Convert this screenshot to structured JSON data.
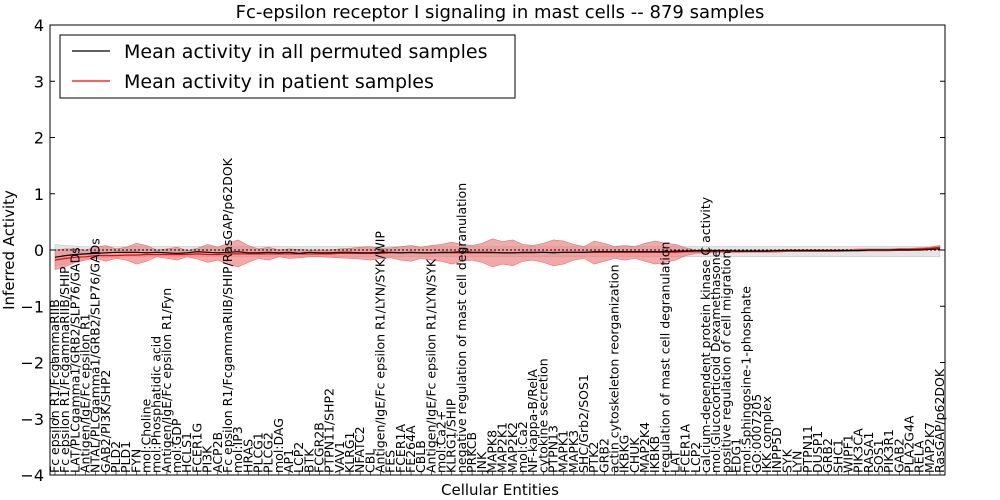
{
  "chart_data": {
    "type": "line",
    "title": "Fc-epsilon receptor I signaling in mast cells -- 879 samples",
    "xlabel": "Cellular Entities",
    "ylabel": "Inferred Activity",
    "ylim": [
      -4,
      4
    ],
    "yticks": [
      -4,
      -3,
      -2,
      -1,
      0,
      1,
      2,
      3,
      4
    ],
    "yticklabels": [
      "−4",
      "−3",
      "−2",
      "−1",
      "0",
      "1",
      "2",
      "3",
      "4"
    ],
    "grid": false,
    "legend_position": "top-left",
    "categories": [
      "Fc epsilon R1/FcgammaRIIB",
      "Fc epsilon R1/FcgammaRIIB/SHIP",
      "LAT/PLCgamma1/GRB2/SLP76/GADs",
      "Antigen/IgE/Fc epsilon R1",
      "NTAL/PLCgamma1/GRB2/SLP76/GADs",
      "GAB2/PI3K/SHP2",
      "PLD2",
      "PLD1",
      "FYN",
      "mol:Choline",
      "mol:Phosphatidic acid",
      "Antigen/IgE/Fc epsilon R1/Fyn",
      "mol:GDP",
      "HCLS1",
      "FCER1G",
      "PI3K",
      "ACP2B",
      "Fc epsilon R1/FcgammaRIIB/SHIP/RasGAP/p62DOK",
      "mol:IP3",
      "HRAS",
      "PLCG1",
      "PLCG2",
      "mol:DAG",
      "AP1",
      "LCP2",
      "BTK",
      "FCGR2B",
      "PTPN11/SHP2",
      "VAV1",
      "KLRG1",
      "NFATC2",
      "CBL",
      "Antigen/IgE/Fc epsilon R1/LYN/SYK/WIP",
      "FES",
      "FCER1A",
      "FE264A",
      "CBLB",
      "Antigen/IgE/Fc epsilon R1/LYN/SYK",
      "mol:Ca2+",
      "KLRG1/SHIP",
      "negative regulation of mast cell degranulation",
      "PRKCB",
      "JNK",
      "MAPK8",
      "MAP2K1",
      "MAP2K2",
      "mol:Ca2",
      "NF-kappa-B/RelA",
      "cytokine secretion",
      "PTPN13",
      "MAPK1",
      "MAPK3",
      "SHC/Grb2/SOS1",
      "PTK2",
      "GRB2",
      "actin cytoskeleton reorganization",
      "IKBKG",
      "CHUK",
      "MAP2K4",
      "IKBKB",
      "regulation of mast cell degranulation",
      "LAT",
      "FCER1A",
      "LCP2",
      "calcium-dependent protein kinase C activity",
      "mol:Glucocorticoid Dexamethasone",
      "positive regulation of cell migration",
      "EDG1",
      "mol:Sphingosine-1-phosphate",
      "GO:0007205",
      "IKK complex",
      "INPP5D",
      "SYK",
      "LYN",
      "PTPN11",
      "DUSP1",
      "GRB2",
      "SHC1",
      "WIPF1",
      "PIK3CA",
      "RASA1",
      "SOS1",
      "PIK3R1",
      "GAB2",
      "PLA2G4A",
      "RELA",
      "MAP2K7",
      "RasGAP/p62DOK"
    ],
    "series": [
      {
        "name": "Mean activity in all permuted samples",
        "color": "#000000",
        "values": [
          -0.13,
          -0.1,
          -0.08,
          -0.07,
          -0.06,
          -0.05,
          -0.04,
          -0.04,
          -0.04,
          -0.05,
          -0.04,
          -0.05,
          -0.06,
          -0.05,
          -0.03,
          -0.04,
          -0.05,
          -0.04,
          -0.03,
          -0.05,
          -0.05,
          -0.04,
          -0.05,
          -0.04,
          -0.06,
          -0.04,
          -0.05,
          -0.05,
          -0.04,
          -0.04,
          -0.05,
          -0.05,
          -0.04,
          -0.04,
          -0.05,
          -0.04,
          -0.05,
          -0.05,
          -0.04,
          -0.04,
          -0.03,
          -0.04,
          -0.04,
          -0.04,
          -0.05,
          -0.05,
          -0.04,
          -0.04,
          -0.04,
          -0.05,
          -0.04,
          -0.04,
          -0.04,
          -0.03,
          -0.03,
          -0.03,
          -0.03,
          -0.03,
          -0.03,
          -0.03,
          -0.03,
          -0.02,
          -0.02,
          -0.01,
          -0.01,
          -0.01,
          -0.01,
          -0.02,
          -0.02,
          -0.02,
          -0.02,
          -0.01,
          -0.01,
          -0.01,
          -0.01,
          -0.01,
          -0.01,
          -0.01,
          -0.01,
          -0.01,
          0.0,
          0.0,
          0.0,
          0.0,
          0.0,
          0.0,
          0.01,
          0.02
        ],
        "band_low": [
          -0.28,
          -0.25,
          -0.2,
          -0.16,
          -0.15,
          -0.13,
          -0.13,
          -0.12,
          -0.12,
          -0.12,
          -0.12,
          -0.12,
          -0.12,
          -0.12,
          -0.12,
          -0.12,
          -0.12,
          -0.12,
          -0.12,
          -0.12,
          -0.12,
          -0.12,
          -0.12,
          -0.12,
          -0.12,
          -0.12,
          -0.12,
          -0.12,
          -0.12,
          -0.12,
          -0.12,
          -0.12,
          -0.12,
          -0.12,
          -0.12,
          -0.12,
          -0.12,
          -0.12,
          -0.12,
          -0.12,
          -0.12,
          -0.12,
          -0.12,
          -0.12,
          -0.12,
          -0.12,
          -0.12,
          -0.12,
          -0.12,
          -0.12,
          -0.12,
          -0.12,
          -0.12,
          -0.12,
          -0.12,
          -0.12,
          -0.12,
          -0.12,
          -0.12,
          -0.12,
          -0.12,
          -0.12,
          -0.12,
          -0.12,
          -0.12,
          -0.12,
          -0.12,
          -0.12,
          -0.12,
          -0.12,
          -0.12,
          -0.12,
          -0.12,
          -0.12,
          -0.12,
          -0.12,
          -0.12,
          -0.12,
          -0.12,
          -0.12,
          -0.12,
          -0.12,
          -0.12,
          -0.12,
          -0.12,
          -0.12,
          -0.12,
          -0.12
        ],
        "band_high": [
          0.1,
          0.08,
          0.07,
          0.06,
          0.06,
          0.06,
          0.06,
          0.06,
          0.06,
          0.06,
          0.06,
          0.06,
          0.06,
          0.06,
          0.06,
          0.06,
          0.06,
          0.06,
          0.06,
          0.06,
          0.06,
          0.06,
          0.06,
          0.06,
          0.06,
          0.06,
          0.06,
          0.06,
          0.06,
          0.06,
          0.06,
          0.06,
          0.06,
          0.06,
          0.06,
          0.06,
          0.06,
          0.06,
          0.06,
          0.06,
          0.06,
          0.06,
          0.06,
          0.06,
          0.06,
          0.06,
          0.06,
          0.06,
          0.06,
          0.06,
          0.06,
          0.06,
          0.06,
          0.06,
          0.06,
          0.06,
          0.06,
          0.06,
          0.06,
          0.06,
          0.06,
          0.06,
          0.06,
          0.06,
          0.06,
          0.06,
          0.06,
          0.06,
          0.06,
          0.06,
          0.06,
          0.06,
          0.06,
          0.06,
          0.06,
          0.06,
          0.06,
          0.06,
          0.06,
          0.06,
          0.06,
          0.06,
          0.06,
          0.06,
          0.06,
          0.06,
          0.06,
          0.08
        ]
      },
      {
        "name": "Mean activity in patient samples",
        "color": "#ff0000",
        "values": [
          -0.18,
          -0.15,
          -0.13,
          -0.12,
          -0.1,
          -0.1,
          -0.1,
          -0.09,
          -0.09,
          -0.08,
          -0.08,
          -0.08,
          -0.08,
          -0.08,
          -0.07,
          -0.08,
          -0.08,
          -0.07,
          -0.07,
          -0.07,
          -0.07,
          -0.07,
          -0.07,
          -0.07,
          -0.07,
          -0.07,
          -0.07,
          -0.07,
          -0.06,
          -0.06,
          -0.06,
          -0.06,
          -0.06,
          -0.05,
          -0.05,
          -0.05,
          -0.05,
          -0.05,
          -0.05,
          -0.05,
          -0.05,
          -0.05,
          -0.05,
          -0.05,
          -0.05,
          -0.05,
          -0.05,
          -0.05,
          -0.04,
          -0.04,
          -0.04,
          -0.04,
          -0.04,
          -0.04,
          -0.04,
          -0.04,
          -0.04,
          -0.04,
          -0.04,
          -0.04,
          -0.04,
          -0.04,
          -0.03,
          -0.03,
          -0.03,
          -0.02,
          -0.02,
          -0.02,
          -0.02,
          -0.02,
          -0.02,
          -0.02,
          -0.01,
          -0.01,
          -0.01,
          -0.01,
          -0.01,
          -0.01,
          -0.01,
          0.0,
          0.0,
          0.0,
          0.0,
          0.01,
          0.01,
          0.02,
          0.03,
          0.05
        ],
        "band_low": [
          -0.35,
          -0.3,
          -0.22,
          -0.18,
          -0.15,
          -0.2,
          -0.15,
          -0.18,
          -0.25,
          -0.2,
          -0.12,
          -0.15,
          -0.18,
          -0.12,
          -0.16,
          -0.22,
          -0.18,
          -0.25,
          -0.3,
          -0.22,
          -0.15,
          -0.18,
          -0.12,
          -0.15,
          -0.14,
          -0.12,
          -0.12,
          -0.13,
          -0.14,
          -0.15,
          -0.16,
          -0.18,
          -0.15,
          -0.14,
          -0.18,
          -0.2,
          -0.15,
          -0.18,
          -0.2,
          -0.25,
          -0.2,
          -0.18,
          -0.22,
          -0.3,
          -0.25,
          -0.28,
          -0.2,
          -0.18,
          -0.22,
          -0.28,
          -0.25,
          -0.18,
          -0.15,
          -0.25,
          -0.2,
          -0.15,
          -0.18,
          -0.15,
          -0.2,
          -0.25,
          -0.22,
          -0.18,
          -0.1,
          -0.06,
          -0.05,
          -0.05,
          -0.05,
          -0.05,
          -0.04,
          -0.04,
          -0.04,
          -0.04,
          -0.03,
          -0.03,
          -0.03,
          -0.03,
          -0.03,
          -0.03,
          -0.02,
          -0.02,
          -0.02,
          -0.02,
          -0.02,
          -0.01,
          -0.01,
          0.0,
          0.01,
          0.03
        ],
        "band_high": [
          0.0,
          0.02,
          0.02,
          0.0,
          0.05,
          0.08,
          0.02,
          0.05,
          0.12,
          0.08,
          0.0,
          0.02,
          0.05,
          -0.01,
          0.03,
          0.1,
          0.05,
          0.12,
          0.18,
          0.08,
          0.02,
          0.05,
          0.0,
          0.02,
          0.01,
          0.0,
          0.0,
          0.0,
          0.02,
          0.03,
          0.05,
          0.06,
          0.03,
          0.04,
          0.06,
          0.08,
          0.05,
          0.08,
          0.1,
          0.14,
          0.1,
          0.08,
          0.12,
          0.2,
          0.15,
          0.18,
          0.1,
          0.08,
          0.12,
          0.18,
          0.16,
          0.1,
          0.06,
          0.16,
          0.12,
          0.06,
          0.08,
          0.06,
          0.12,
          0.16,
          0.12,
          0.1,
          0.04,
          0.0,
          0.0,
          0.0,
          0.0,
          0.0,
          0.0,
          0.0,
          0.0,
          0.0,
          0.01,
          0.01,
          0.01,
          0.01,
          0.01,
          0.01,
          0.01,
          0.02,
          0.02,
          0.02,
          0.02,
          0.03,
          0.03,
          0.04,
          0.05,
          0.08
        ]
      }
    ]
  }
}
